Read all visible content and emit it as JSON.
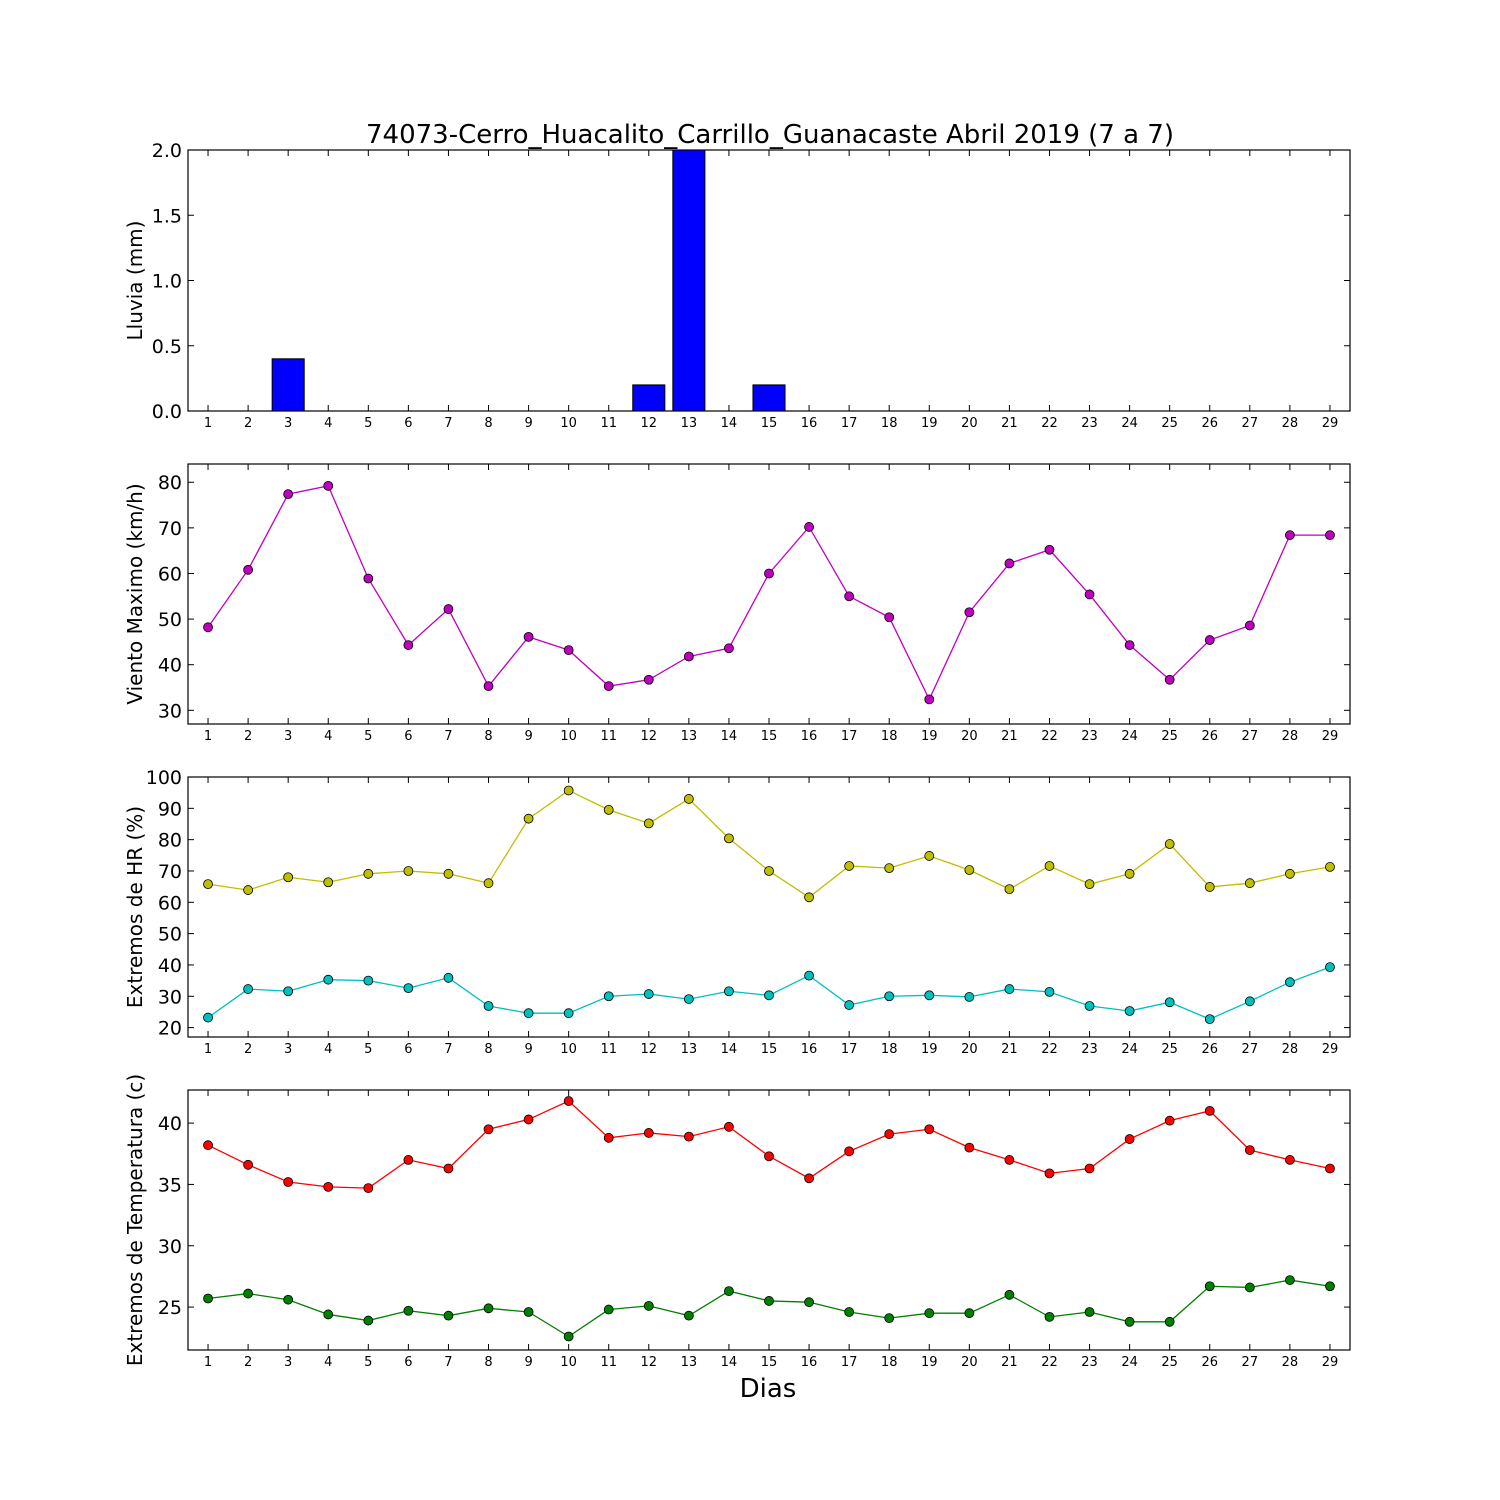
{
  "title": "74073-Cerro_Huacalito_Carrillo_Guanacaste Abril 2019  (7 a 7)",
  "xlabel": "Dias",
  "chart_data": [
    {
      "type": "bar",
      "ylabel": "Lluvia (mm)",
      "x": [
        1,
        2,
        3,
        4,
        5,
        6,
        7,
        8,
        9,
        10,
        11,
        12,
        13,
        14,
        15,
        16,
        17,
        18,
        19,
        20,
        21,
        22,
        23,
        24,
        25,
        26,
        27,
        28,
        29
      ],
      "ylim": [
        0,
        2.0
      ],
      "yticks": [
        "0.0",
        "0.5",
        "1.0",
        "1.5",
        "2.0"
      ],
      "series": [
        {
          "color": "#0000ff",
          "values": [
            0,
            0,
            0.4,
            0,
            0,
            0,
            0,
            0,
            0,
            0,
            0,
            0.2,
            2.0,
            0,
            0.2,
            0,
            0,
            0,
            0,
            0,
            0,
            0,
            0,
            0,
            0,
            0,
            0,
            0,
            0
          ]
        }
      ]
    },
    {
      "type": "line",
      "ylabel": "Viento Maximo (km/h)",
      "x": [
        1,
        2,
        3,
        4,
        5,
        6,
        7,
        8,
        9,
        10,
        11,
        12,
        13,
        14,
        15,
        16,
        17,
        18,
        19,
        20,
        21,
        22,
        23,
        24,
        25,
        26,
        27,
        28,
        29
      ],
      "ylim": [
        27,
        84
      ],
      "yticks": [
        "30",
        "40",
        "50",
        "60",
        "70",
        "80"
      ],
      "series": [
        {
          "color": "#bf00bf",
          "values": [
            48.2,
            60.8,
            77.4,
            79.2,
            58.9,
            44.3,
            52.2,
            35.3,
            46.1,
            43.2,
            35.3,
            36.7,
            41.8,
            43.6,
            60.0,
            70.2,
            55.0,
            50.4,
            32.4,
            51.5,
            62.2,
            65.2,
            55.4,
            44.3,
            36.7,
            45.4,
            48.6,
            68.4,
            68.4
          ]
        }
      ]
    },
    {
      "type": "line",
      "ylabel": "Extremos de HR (%)",
      "x": [
        1,
        2,
        3,
        4,
        5,
        6,
        7,
        8,
        9,
        10,
        11,
        12,
        13,
        14,
        15,
        16,
        17,
        18,
        19,
        20,
        21,
        22,
        23,
        24,
        25,
        26,
        27,
        28,
        29
      ],
      "ylim": [
        17,
        100
      ],
      "yticks": [
        "20",
        "30",
        "40",
        "50",
        "60",
        "70",
        "80",
        "90",
        "100"
      ],
      "series": [
        {
          "color": "#bfbf00",
          "values": [
            65.8,
            63.9,
            68.0,
            66.4,
            69.1,
            70.0,
            69.1,
            66.1,
            86.7,
            95.7,
            89.5,
            85.2,
            93.0,
            80.4,
            70.0,
            61.6,
            71.6,
            70.9,
            74.8,
            70.3,
            64.2,
            71.6,
            65.8,
            69.1,
            78.6,
            64.9,
            66.1,
            69.1,
            71.3
          ]
        },
        {
          "color": "#00bfbf",
          "values": [
            23.2,
            32.3,
            31.6,
            35.3,
            35.0,
            32.6,
            35.9,
            26.9,
            24.6,
            24.6,
            30.0,
            30.7,
            29.1,
            31.6,
            30.3,
            36.6,
            27.2,
            30.0,
            30.3,
            29.8,
            32.3,
            31.4,
            26.9,
            25.3,
            28.1,
            22.7,
            28.4,
            34.5,
            39.3
          ]
        }
      ]
    },
    {
      "type": "line",
      "ylabel": "Extremos de Temperatura (c)",
      "x": [
        1,
        2,
        3,
        4,
        5,
        6,
        7,
        8,
        9,
        10,
        11,
        12,
        13,
        14,
        15,
        16,
        17,
        18,
        19,
        20,
        21,
        22,
        23,
        24,
        25,
        26,
        27,
        28,
        29
      ],
      "ylim": [
        21.5,
        42.7
      ],
      "yticks": [
        "25",
        "30",
        "35",
        "40"
      ],
      "series": [
        {
          "color": "#ff0000",
          "values": [
            38.2,
            36.6,
            35.2,
            34.8,
            34.7,
            37.0,
            36.3,
            39.5,
            40.3,
            41.8,
            38.8,
            39.2,
            38.9,
            39.7,
            37.3,
            35.5,
            37.7,
            39.1,
            39.5,
            38.0,
            37.0,
            35.9,
            36.3,
            38.7,
            40.2,
            41.0,
            37.8,
            37.0,
            36.3
          ]
        },
        {
          "color": "#008000",
          "values": [
            25.7,
            26.1,
            25.6,
            24.4,
            23.9,
            24.7,
            24.3,
            24.9,
            24.6,
            22.6,
            24.8,
            25.1,
            24.3,
            26.3,
            25.5,
            25.4,
            24.6,
            24.1,
            24.5,
            24.5,
            26.0,
            24.2,
            24.6,
            23.8,
            23.8,
            26.7,
            26.6,
            27.2,
            26.7
          ]
        }
      ]
    }
  ]
}
